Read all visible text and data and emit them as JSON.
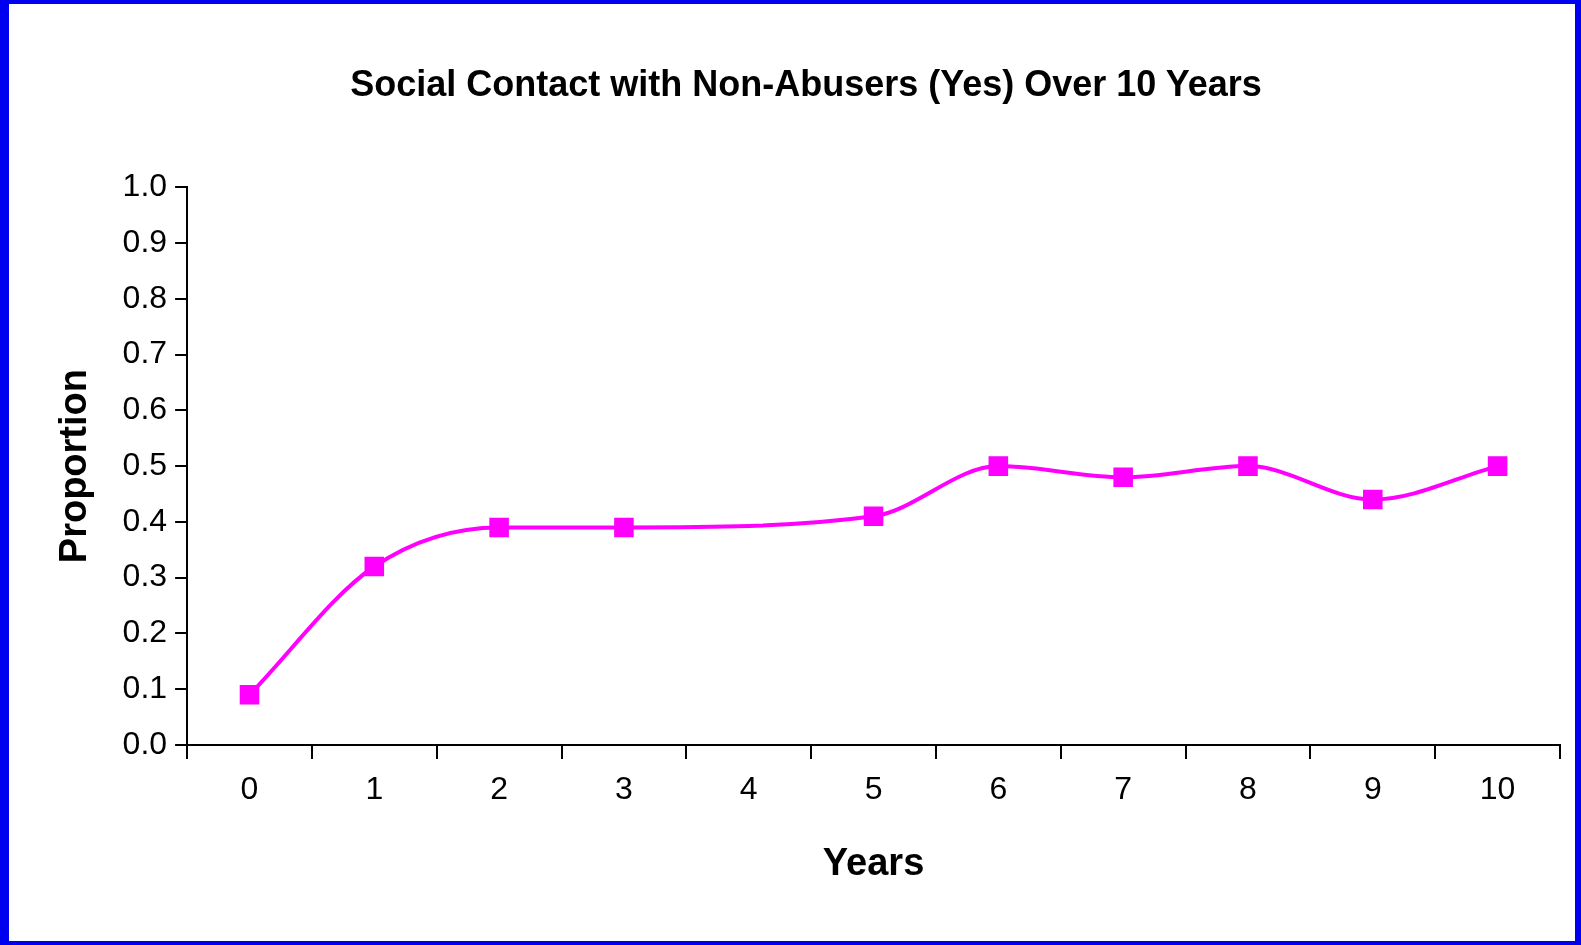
{
  "chart_data": {
    "type": "line",
    "title": "Social Contact with Non-Abusers (Yes) Over 10 Years",
    "xlabel": "Years",
    "ylabel": "Proportion",
    "categories": [
      "0",
      "1",
      "2",
      "3",
      "4",
      "5",
      "6",
      "7",
      "8",
      "9",
      "10"
    ],
    "series": [
      {
        "color": "#ff00ff",
        "values": [
          0.09,
          0.32,
          0.39,
          0.39,
          null,
          0.41,
          0.5,
          0.48,
          0.5,
          0.44,
          0.5
        ]
      }
    ],
    "ylim": [
      0,
      1
    ],
    "yticks": [
      {
        "value": 0,
        "label": "0.0"
      },
      {
        "value": 0.1,
        "label": "0.1"
      },
      {
        "value": 0.2,
        "label": "0.2"
      },
      {
        "value": 0.3,
        "label": "0.3"
      },
      {
        "value": 0.4,
        "label": "0.4"
      },
      {
        "value": 0.5,
        "label": "0.5"
      },
      {
        "value": 0.6,
        "label": "0.6"
      },
      {
        "value": 0.7,
        "label": "0.7"
      },
      {
        "value": 0.8,
        "label": "0.8"
      },
      {
        "value": 0.9,
        "label": "0.9"
      },
      {
        "value": 1,
        "label": "1.0"
      }
    ],
    "marker": "square",
    "grid": false,
    "legend": false
  }
}
